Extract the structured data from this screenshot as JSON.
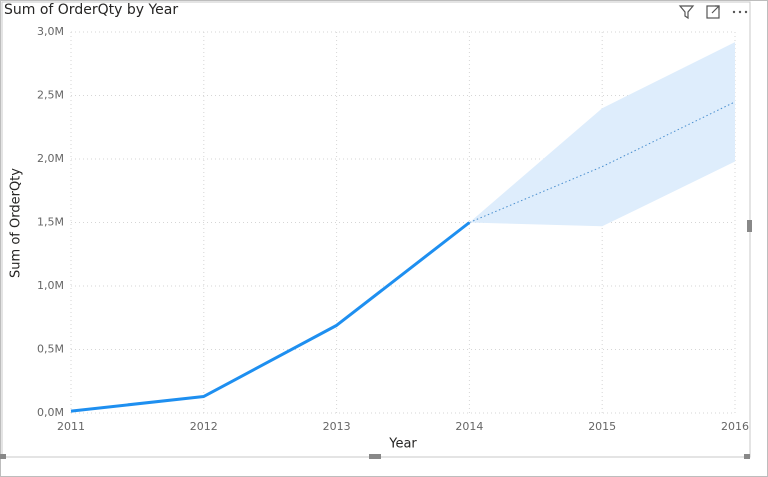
{
  "chart_data": {
    "type": "line",
    "title": "Sum of OrderQty by Year",
    "x_label": "Year",
    "y_label": "Sum of OrderQty",
    "x": [
      2011,
      2012,
      2013,
      2014,
      2015,
      2016
    ],
    "series": [
      {
        "color": "#1e8ff0",
        "style": "solid",
        "values": [
          15000,
          130000,
          690000,
          1500000,
          null,
          null
        ]
      },
      {
        "color": "#4a8fcf",
        "style": "dotted",
        "values": [
          null,
          null,
          null,
          1500000,
          1940000,
          2450000
        ]
      }
    ],
    "forecast_band": {
      "color": "#deedfc",
      "upper": [
        null,
        null,
        null,
        1500000,
        2400000,
        2920000
      ],
      "lower": [
        null,
        null,
        null,
        1500000,
        1470000,
        1980000
      ]
    },
    "xlim": [
      2011,
      2016
    ],
    "xticks": [
      2011,
      2012,
      2013,
      2014,
      2015,
      2016
    ],
    "ylim": [
      0,
      3000000
    ],
    "yticks": [
      {
        "value": 0,
        "label": "0,0M"
      },
      {
        "value": 500000,
        "label": "0,5M"
      },
      {
        "value": 1000000,
        "label": "1,0M"
      },
      {
        "value": 1500000,
        "label": "1,5M"
      },
      {
        "value": 2000000,
        "label": "2,0M"
      },
      {
        "value": 2500000,
        "label": "2,5M"
      },
      {
        "value": 3000000,
        "label": "3,0M"
      }
    ],
    "grid": true
  }
}
